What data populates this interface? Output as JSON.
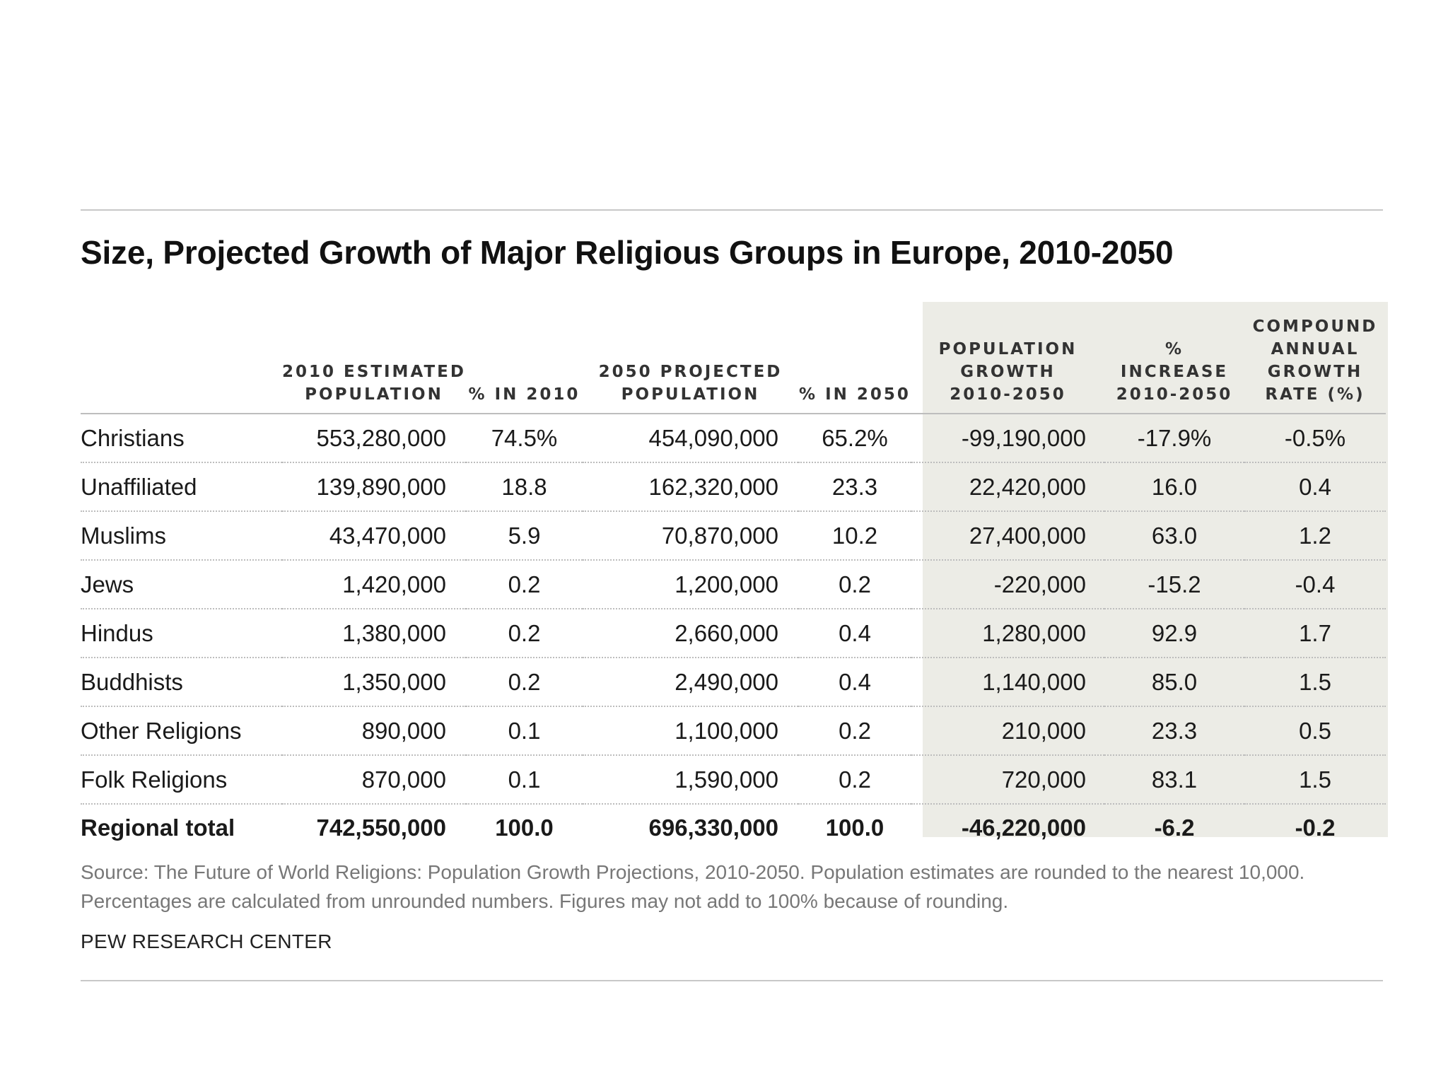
{
  "title": "Size, Projected Growth of Major Religious Groups in Europe, 2010-2050",
  "columns": [
    "",
    "2010 ESTIMATED\nPOPULATION",
    "% IN 2010",
    "2050 PROJECTED\nPOPULATION",
    "% IN 2050",
    "POPULATION\nGROWTH\n2010-2050",
    "%\nINCREASE\n2010-2050",
    "COMPOUND\nANNUAL\nGROWTH\nRATE (%)"
  ],
  "rows": [
    [
      "Christians",
      "553,280,000",
      "74.5%",
      "454,090,000",
      "65.2%",
      "-99,190,000",
      "-17.9%",
      "-0.5%"
    ],
    [
      "Unaffiliated",
      "139,890,000",
      "18.8",
      "162,320,000",
      "23.3",
      "22,420,000",
      "16.0",
      "0.4"
    ],
    [
      "Muslims",
      "43,470,000",
      "5.9",
      "70,870,000",
      "10.2",
      "27,400,000",
      "63.0",
      "1.2"
    ],
    [
      "Jews",
      "1,420,000",
      "0.2",
      "1,200,000",
      "0.2",
      "-220,000",
      "-15.2",
      "-0.4"
    ],
    [
      "Hindus",
      "1,380,000",
      "0.2",
      "2,660,000",
      "0.4",
      "1,280,000",
      "92.9",
      "1.7"
    ],
    [
      "Buddhists",
      "1,350,000",
      "0.2",
      "2,490,000",
      "0.4",
      "1,140,000",
      "85.0",
      "1.5"
    ],
    [
      "Other Religions",
      "890,000",
      "0.1",
      "1,100,000",
      "0.2",
      "210,000",
      "23.3",
      "0.5"
    ],
    [
      "Folk Religions",
      "870,000",
      "0.1",
      "1,590,000",
      "0.2",
      "720,000",
      "83.1",
      "1.5"
    ],
    [
      "Regional total",
      "742,550,000",
      "100.0",
      "696,330,000",
      "100.0",
      "-46,220,000",
      "-6.2",
      "-0.2"
    ]
  ],
  "source": "Source: The Future of World Religions: Population Growth Projections, 2010-2050. Population estimates are rounded to the nearest 10,000. Percentages are calculated from unrounded numbers. Figures may not add to 100% because of rounding.",
  "brand": "PEW RESEARCH CENTER",
  "colors": {
    "shade": "#ecece6",
    "text": "#1a1a1a",
    "note": "#777777",
    "rule": "#c8c8c8"
  },
  "chart_data": {
    "type": "table",
    "title": "Size, Projected Growth of Major Religious Groups in Europe, 2010-2050",
    "columns": [
      "",
      "2010 ESTIMATED POPULATION",
      "% IN 2010",
      "2050 PROJECTED POPULATION",
      "% IN 2050",
      "POPULATION GROWTH 2010-2050",
      "% INCREASE 2010-2050",
      "COMPOUND ANNUAL GROWTH RATE (%)"
    ],
    "categories": [
      "Christians",
      "Unaffiliated",
      "Muslims",
      "Jews",
      "Hindus",
      "Buddhists",
      "Other Religions",
      "Folk Religions",
      "Regional total"
    ],
    "series": [
      {
        "name": "2010 estimated population",
        "values": [
          553280000,
          139890000,
          43470000,
          1420000,
          1380000,
          1350000,
          890000,
          870000,
          742550000
        ]
      },
      {
        "name": "% in 2010",
        "values": [
          74.5,
          18.8,
          5.9,
          0.2,
          0.2,
          0.2,
          0.1,
          0.1,
          100.0
        ]
      },
      {
        "name": "2050 projected population",
        "values": [
          454090000,
          162320000,
          70870000,
          1200000,
          2660000,
          2490000,
          1100000,
          1590000,
          696330000
        ]
      },
      {
        "name": "% in 2050",
        "values": [
          65.2,
          23.3,
          10.2,
          0.2,
          0.4,
          0.4,
          0.2,
          0.2,
          100.0
        ]
      },
      {
        "name": "Population growth 2010-2050",
        "values": [
          -99190000,
          22420000,
          27400000,
          -220000,
          1280000,
          1140000,
          210000,
          720000,
          -46220000
        ]
      },
      {
        "name": "% increase 2010-2050",
        "values": [
          -17.9,
          16.0,
          63.0,
          -15.2,
          92.9,
          85.0,
          23.3,
          83.1,
          -6.2
        ]
      },
      {
        "name": "Compound annual growth rate (%)",
        "values": [
          -0.5,
          0.4,
          1.2,
          -0.4,
          1.7,
          1.5,
          0.5,
          1.5,
          -0.2
        ]
      }
    ]
  }
}
